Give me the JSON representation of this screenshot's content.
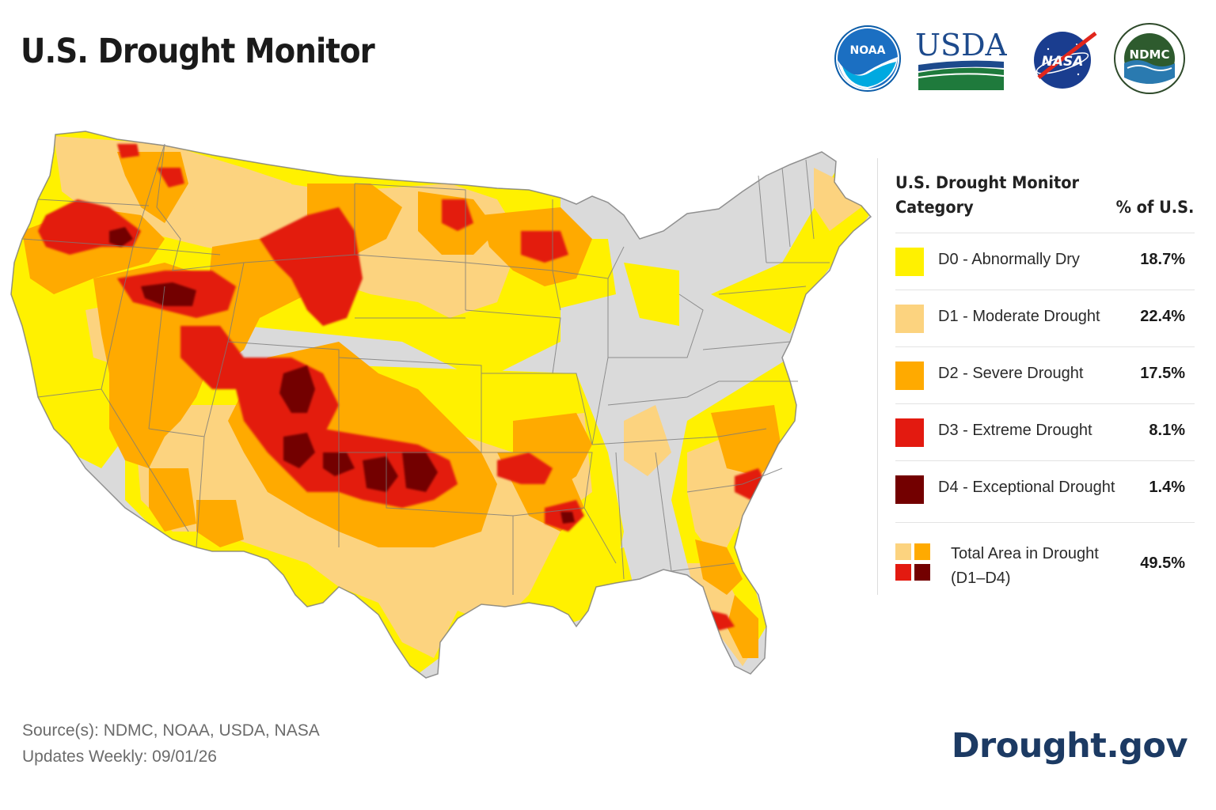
{
  "header": {
    "title": "U.S. Drought Monitor"
  },
  "logos": [
    {
      "name": "noaa-logo",
      "text": "NOAA"
    },
    {
      "name": "usda-logo",
      "text": "USDA"
    },
    {
      "name": "nasa-logo",
      "text": "NASA"
    },
    {
      "name": "ndmc-logo",
      "text": "NDMC"
    }
  ],
  "colors": {
    "d0": "#fff100",
    "d1": "#fcd37f",
    "d2": "#ffaa00",
    "d3": "#e31a10",
    "d4": "#730000",
    "none": "#dadada",
    "border": "#7a7a7a",
    "brand": "#1c3a63"
  },
  "legend": {
    "heading": "U.S. Drought Monitor Category",
    "pct_heading": "% of U.S.",
    "categories": [
      {
        "label": "D0 - Abnormally Dry",
        "pct": "18.7%",
        "color": "#fff100"
      },
      {
        "label": "D1 - Moderate Drought",
        "pct": "22.4%",
        "color": "#fcd37f"
      },
      {
        "label": "D2 - Severe Drought",
        "pct": "17.5%",
        "color": "#ffaa00"
      },
      {
        "label": "D3 - Extreme Drought",
        "pct": "8.1%",
        "color": "#e31a10"
      },
      {
        "label": "D4 - Exceptional Drought",
        "pct": "1.4%",
        "color": "#730000"
      }
    ],
    "total": {
      "label_line1": "Total Area in Drought",
      "label_line2": "(D1–D4)",
      "pct": "49.5%"
    }
  },
  "footer": {
    "source": "Source(s): NDMC, NOAA, USDA, NASA",
    "updated": "Updates Weekly: 09/01/26",
    "site": "Drought.gov"
  }
}
